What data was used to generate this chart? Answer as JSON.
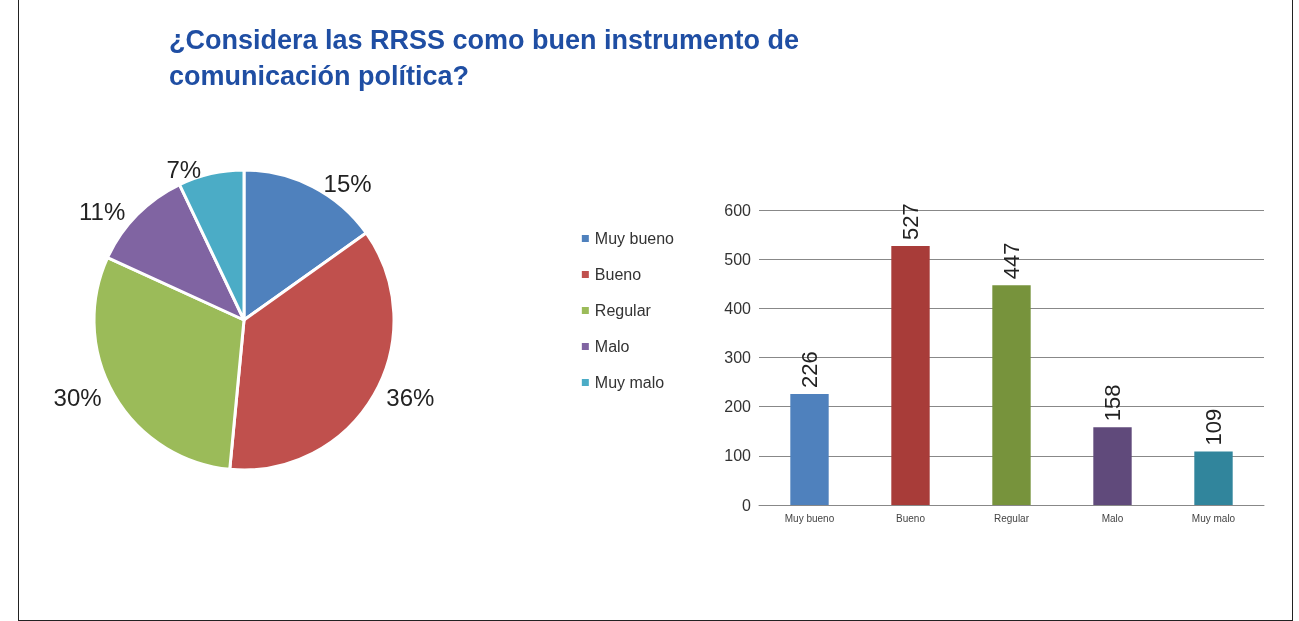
{
  "chart_data": [
    {
      "type": "pie",
      "title": "¿Considera las RRSS como buen instrumento de\ncomunicación política?",
      "categories": [
        "Muy bueno",
        "Bueno",
        "Regular",
        "Malo",
        "Muy malo"
      ],
      "values": [
        15,
        36,
        30,
        11,
        7
      ],
      "colors": [
        "#4f81bd",
        "#c0504d",
        "#9bbb59",
        "#8064a2",
        "#4bacc6"
      ],
      "value_labels": [
        "15%",
        "36%",
        "30%",
        "11%",
        "7%"
      ],
      "legend": "right"
    },
    {
      "type": "bar",
      "categories": [
        "Muy bueno",
        "Bueno",
        "Regular",
        "Malo",
        "Muy malo"
      ],
      "values": [
        226,
        527,
        447,
        158,
        109
      ],
      "colors": [
        "#4f81bd",
        "#a83c39",
        "#77933c",
        "#604a7b",
        "#31859c"
      ],
      "ylim": [
        0,
        600
      ],
      "yticks": [
        0,
        100,
        200,
        300,
        400,
        500,
        600
      ],
      "grid": "y",
      "data_labels": true
    }
  ]
}
